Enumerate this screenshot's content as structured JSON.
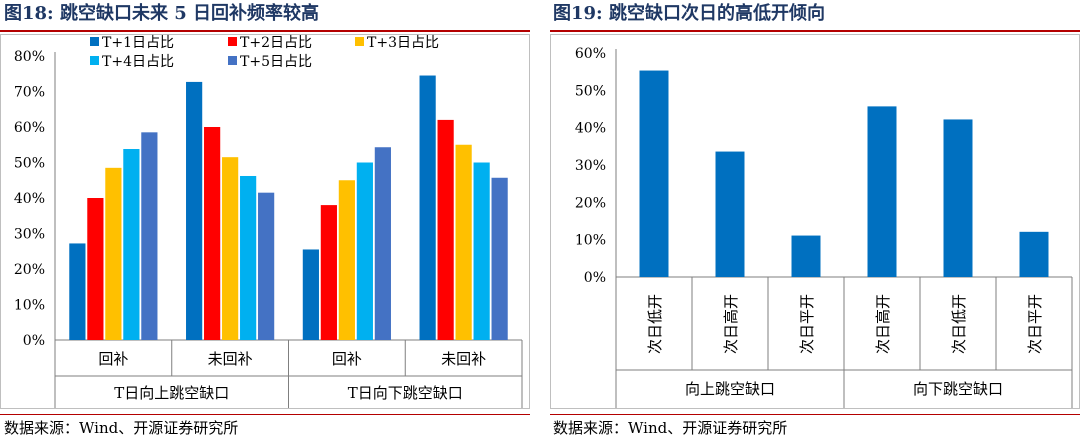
{
  "left": {
    "fig_title": "图18: 跳空缺口未来 5 日回补频率较高",
    "source": "数据来源：Wind、开源证券研究所",
    "chart_data": {
      "type": "bar",
      "yticks": [
        "0%",
        "10%",
        "20%",
        "30%",
        "40%",
        "50%",
        "60%",
        "70%",
        "80%"
      ],
      "ylim": [
        0,
        80
      ],
      "categories": [
        "回补",
        "未回补",
        "回补",
        "未回补"
      ],
      "groups": [
        "T日向上跳空缺口",
        "T日向下跳空缺口"
      ],
      "legend_position": "top",
      "series": [
        {
          "name": "T+1日占比",
          "color": "#0070c0",
          "values": [
            27.2,
            72.7,
            25.5,
            74.5
          ]
        },
        {
          "name": "T+2日占比",
          "color": "#ff0000",
          "values": [
            40.0,
            60.0,
            38.0,
            62.0
          ]
        },
        {
          "name": "T+3日占比",
          "color": "#ffc000",
          "values": [
            48.5,
            51.5,
            45.0,
            55.0
          ]
        },
        {
          "name": "T+4日占比",
          "color": "#00b0f0",
          "values": [
            53.8,
            46.2,
            50.0,
            50.0
          ]
        },
        {
          "name": "T+5日占比",
          "color": "#4472c4",
          "values": [
            58.5,
            41.5,
            54.3,
            45.7
          ]
        }
      ]
    }
  },
  "right": {
    "fig_title": "图19: 跳空缺口次日的高低开倾向",
    "source": "数据来源：Wind、开源证券研究所",
    "chart_data": {
      "type": "bar",
      "yticks": [
        "0%",
        "10%",
        "20%",
        "30%",
        "40%",
        "50%",
        "60%"
      ],
      "ylim": [
        0,
        60
      ],
      "categories": [
        "次日低开",
        "次日高开",
        "次日平开",
        "次日高开",
        "次日低开",
        "次日平开"
      ],
      "groups": [
        "向上跳空缺口",
        "向下跳空缺口"
      ],
      "color": "#0070c0",
      "values": [
        55.3,
        33.6,
        11.1,
        45.7,
        42.2,
        12.1
      ]
    }
  }
}
